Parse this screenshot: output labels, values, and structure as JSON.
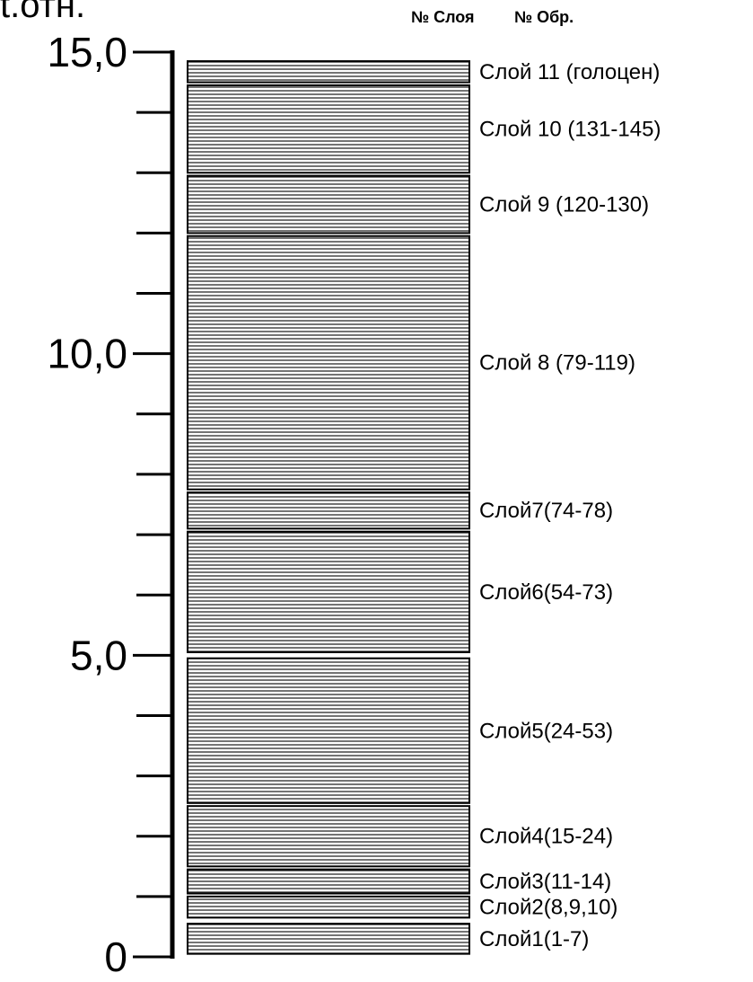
{
  "axis": {
    "title": "t.отн.",
    "min": 0,
    "max": 15,
    "labels": [
      {
        "value": 15,
        "text": "15,0"
      },
      {
        "value": 10,
        "text": "10,0"
      },
      {
        "value": 5,
        "text": "5,0"
      },
      {
        "value": 0,
        "text": "0"
      }
    ],
    "minor_tick_step": 1
  },
  "header": {
    "layer_number": "№ Слоя",
    "sample_number": "№ Обр."
  },
  "layers": [
    {
      "label": "Слой1(1-7)",
      "from": 0.05,
      "to": 0.55
    },
    {
      "label": "Слой2(8,9,10)",
      "from": 0.65,
      "to": 1.0
    },
    {
      "label": "Слой3(11-14)",
      "from": 1.05,
      "to": 1.45
    },
    {
      "label": "Слой4(15-24)",
      "from": 1.5,
      "to": 2.5
    },
    {
      "label": "Слой5(24-53)",
      "from": 2.55,
      "to": 4.95
    },
    {
      "label": "Слой6(54-73)",
      "from": 5.05,
      "to": 7.05
    },
    {
      "label": "Слой7(74-78)",
      "from": 7.1,
      "to": 7.7
    },
    {
      "label": "Слой 8 (79-119)",
      "from": 7.75,
      "to": 11.95
    },
    {
      "label": "Слой 9 (120-130)",
      "from": 12.0,
      "to": 12.95
    },
    {
      "label": "Слой 10 (131-145)",
      "from": 13.0,
      "to": 14.45
    },
    {
      "label": "Слой 11 (голоцен)",
      "from": 14.5,
      "to": 14.85
    }
  ]
}
